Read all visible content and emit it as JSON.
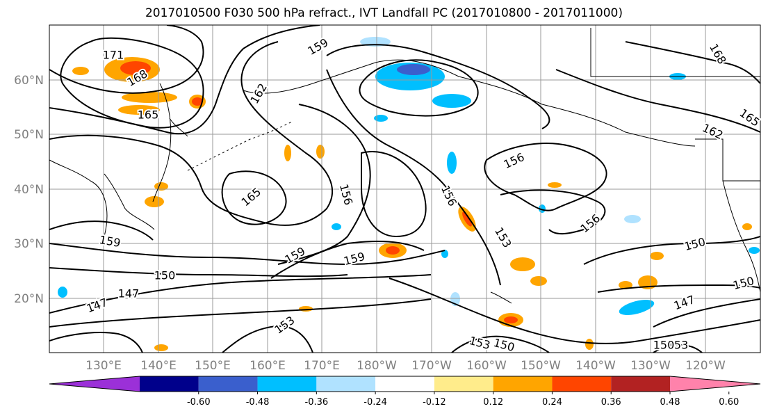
{
  "title": "2017010500 F030 500 hPa refract., IVT Landfall PC (2017010800 - 2017011000)",
  "lat_labels": [
    "60°N",
    "50°N",
    "40°N",
    "30°N",
    "20°N"
  ],
  "lon_labels": [
    "130°E",
    "140°E",
    "150°E",
    "160°E",
    "170°E",
    "180°W",
    "170°W",
    "160°W",
    "150°W",
    "140°W",
    "130°W",
    "120°W"
  ],
  "contour_labels": [
    "171",
    "168",
    "165",
    "159",
    "162",
    "168",
    "165",
    "162",
    "156",
    "165",
    "156",
    "156",
    "153",
    "156",
    "159",
    "159",
    "150",
    "150",
    "147",
    "147",
    "150",
    "153",
    "150",
    "153",
    "147",
    "153",
    "159",
    "150"
  ],
  "colorbar": {
    "ticks": [
      "-0.60",
      "-0.48",
      "-0.36",
      "-0.24",
      "-0.12",
      "0.12",
      "0.24",
      "0.36",
      "0.48",
      "0.60"
    ],
    "colors": [
      "#9b30d8",
      "#00008b",
      "#3a5fcd",
      "#00bfff",
      "#b0e2ff",
      "#ffffff",
      "#ffec8b",
      "#ffa500",
      "#ff4500",
      "#b22222",
      "#ff82ab"
    ]
  }
}
